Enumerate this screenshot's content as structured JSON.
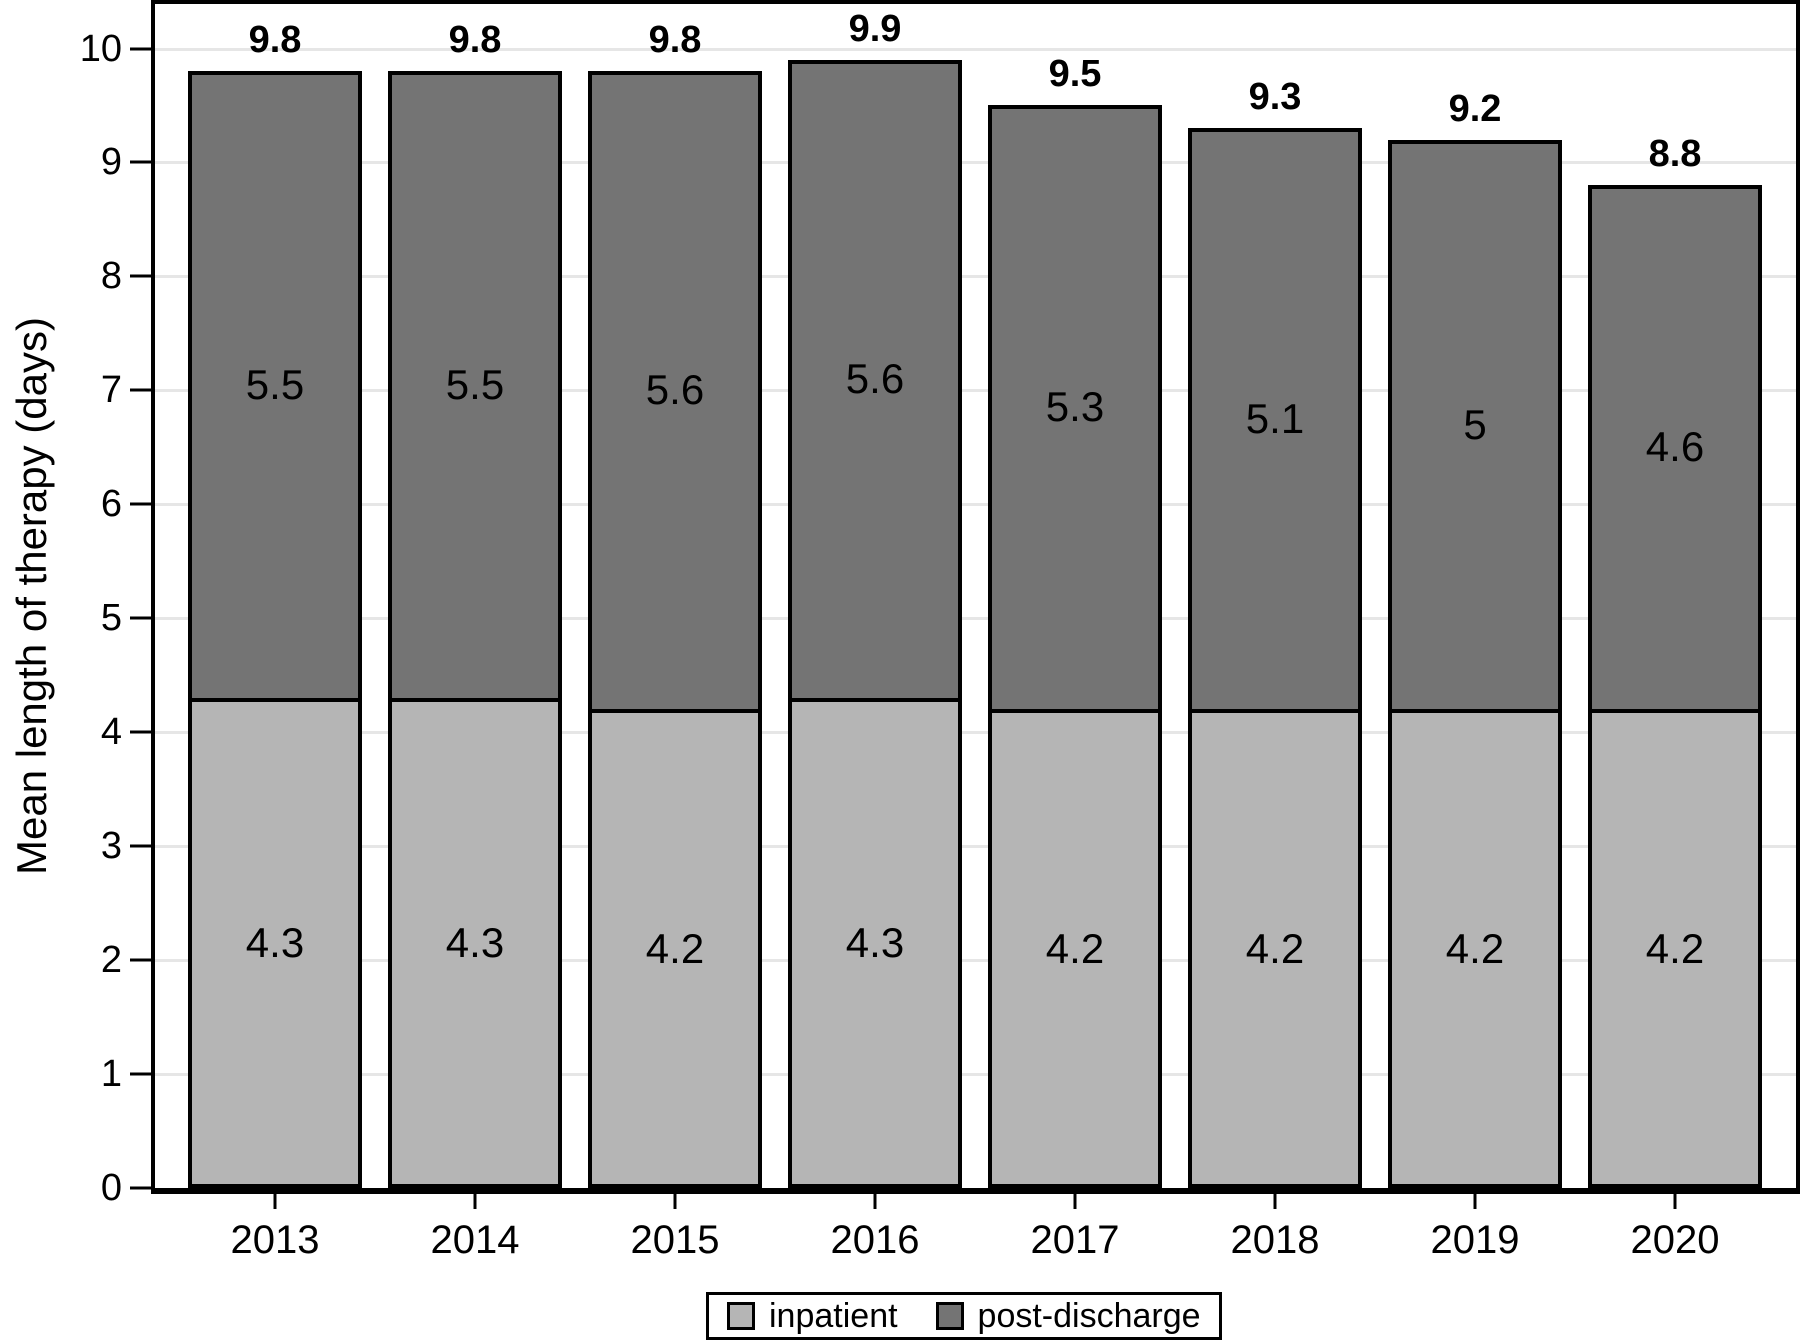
{
  "chart_data": {
    "type": "bar",
    "stacked": true,
    "title": "",
    "xlabel": "",
    "ylabel": "Mean length of therapy (days)",
    "ylim": [
      0,
      10
    ],
    "yticks": [
      0,
      1,
      2,
      3,
      4,
      5,
      6,
      7,
      8,
      9,
      10
    ],
    "ytick_labels": [
      "0",
      "1",
      "2",
      "3",
      "4",
      "5",
      "6",
      "7",
      "8",
      "9",
      "10"
    ],
    "grid": "horizontal gridlines at each integer",
    "gridline_color": "#e6e6e6",
    "axis_color": "#000000",
    "bar_border_color": "#000000",
    "legend_position": "bottom center, boxed",
    "categories": [
      "2013",
      "2014",
      "2015",
      "2016",
      "2017",
      "2018",
      "2019",
      "2020"
    ],
    "series": [
      {
        "name": "inpatient",
        "color": "#b5b5b5",
        "values": [
          4.3,
          4.3,
          4.2,
          4.3,
          4.2,
          4.2,
          4.2,
          4.2
        ],
        "labels": [
          "4.3",
          "4.3",
          "4.2",
          "4.3",
          "4.2",
          "4.2",
          "4.2",
          "4.2"
        ]
      },
      {
        "name": "post-discharge",
        "color": "#747474",
        "values": [
          5.5,
          5.5,
          5.6,
          5.6,
          5.3,
          5.1,
          5,
          4.6
        ],
        "labels": [
          "5.5",
          "5.5",
          "5.6",
          "5.6",
          "5.3",
          "5.1",
          "5",
          "4.6"
        ]
      }
    ],
    "totals": [
      9.8,
      9.8,
      9.8,
      9.9,
      9.5,
      9.3,
      9.2,
      8.8
    ],
    "total_labels": [
      "9.8",
      "9.8",
      "9.8",
      "9.9",
      "9.5",
      "9.3",
      "9.2",
      "8.8"
    ]
  }
}
